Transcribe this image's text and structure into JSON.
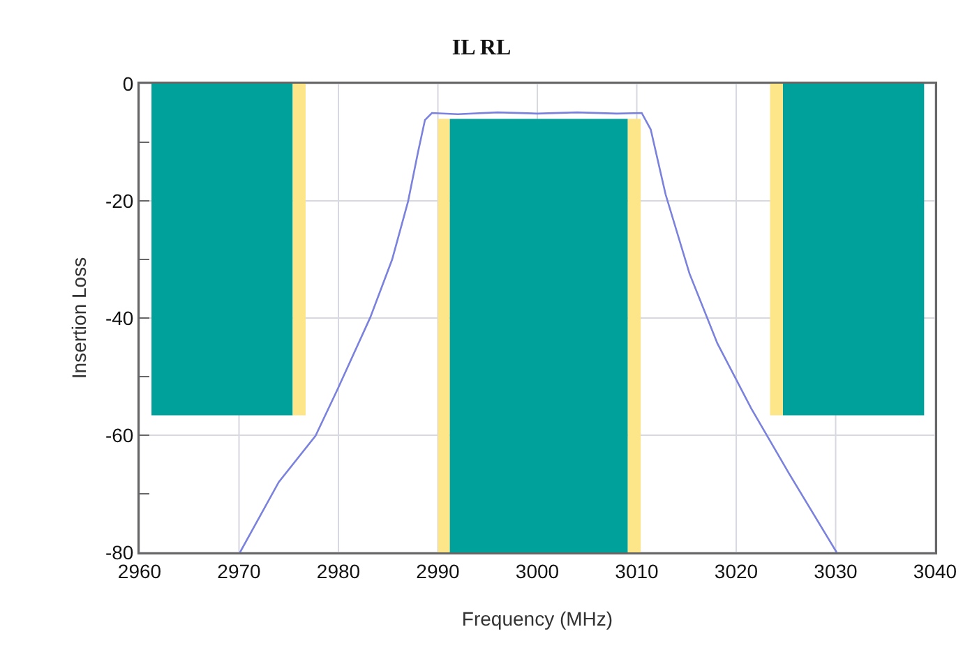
{
  "chart_data": {
    "type": "line",
    "title": "IL RL",
    "xlabel": "Frequency (MHz)",
    "ylabel": "Insertion Loss",
    "xlim": [
      2960,
      3040
    ],
    "xticks": [
      2960,
      2970,
      2980,
      2990,
      3000,
      3010,
      3020,
      3030,
      3040
    ],
    "ylim": [
      -80,
      0
    ],
    "yticks": [
      -80,
      {
        "value": -70,
        "label": null
      },
      -60,
      {
        "value": -50,
        "label": null
      },
      -40,
      {
        "value": -30,
        "label": null
      },
      -20,
      {
        "value": -10,
        "label": null
      },
      0
    ],
    "grid": true,
    "series": [
      {
        "type": "area",
        "color": "#00a19a",
        "x": [
          2961.2,
          2975.4
        ],
        "values": [
          -56.6,
          -56.6
        ]
      },
      {
        "type": "area",
        "color": "#fde68a",
        "x": [
          2975.4,
          2976.7
        ],
        "values": [
          -56.6,
          -56.6
        ]
      },
      {
        "type": "line",
        "color": "#fde68a",
        "x": [
          2990,
          2991.2
        ],
        "values": [
          null,
          null
        ],
        "lower": [
          -80,
          -80
        ],
        "upper": [
          -6,
          -6
        ]
      },
      {
        "type": "line",
        "color": "#00a19a",
        "x": [
          2991.2,
          3009.1
        ],
        "values": [
          null,
          null
        ],
        "lower": [
          -80,
          -80
        ],
        "upper": [
          -6,
          -6
        ]
      },
      {
        "type": "line",
        "color": "#fde68a",
        "x": [
          3009.1,
          3010.4
        ],
        "values": [
          null,
          null
        ],
        "lower": [
          -80,
          -80
        ],
        "upper": [
          -6,
          -6
        ]
      },
      {
        "type": "area",
        "color": "#fde68a",
        "x": [
          3023.4,
          3024.7
        ],
        "values": [
          -56.6,
          -56.6
        ]
      },
      {
        "type": "area",
        "color": "#00a19a",
        "x": [
          3024.7,
          3038.9
        ],
        "values": [
          -56.6,
          -56.6
        ]
      },
      {
        "color": "#7b82dd",
        "x": [
          2970.1,
          2974,
          2977.7,
          2979.9,
          2983.2,
          2985.4,
          2987,
          2988,
          2988.7,
          2989.4,
          2992,
          2996,
          3000,
          3004,
          3008,
          3010.5,
          3011.4,
          3012.9,
          3015.3,
          3018.1,
          3021.5,
          3025.3,
          3030.1
        ],
        "values": [
          -80,
          -68,
          -60.1,
          -52.2,
          -39.9,
          -30,
          -20.1,
          -11.7,
          -6.2,
          -5,
          -5.2,
          -4.9,
          -5.1,
          -4.9,
          -5.1,
          -5,
          -7.8,
          -18.9,
          -32.4,
          -44.3,
          -55.4,
          -66.5,
          -80
        ]
      }
    ]
  }
}
